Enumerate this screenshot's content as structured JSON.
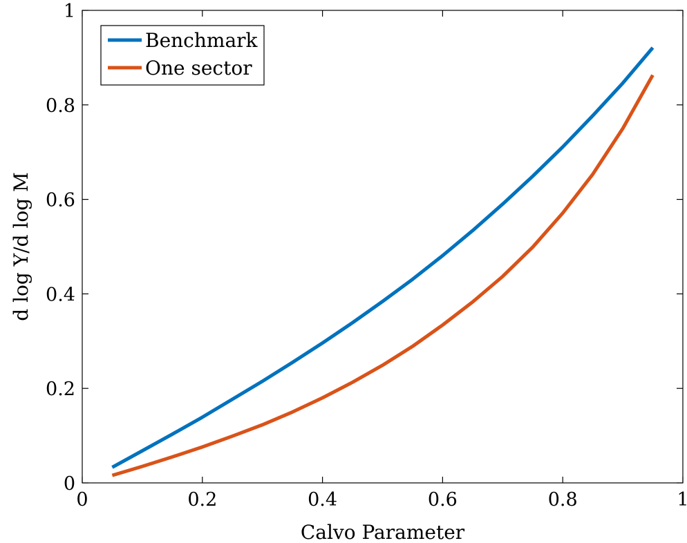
{
  "chart_data": {
    "type": "line",
    "title": "",
    "xlabel": "Calvo Parameter",
    "ylabel": "d log Y/d log M",
    "xlim": [
      0,
      1
    ],
    "ylim": [
      0,
      1
    ],
    "xticks": [
      "0",
      "0.2",
      "0.4",
      "0.6",
      "0.8",
      "1"
    ],
    "yticks": [
      "0",
      "0.2",
      "0.4",
      "0.6",
      "0.8",
      "1"
    ],
    "grid": false,
    "legend_position": "top-left",
    "x": [
      0.05,
      0.1,
      0.15,
      0.2,
      0.25,
      0.3,
      0.35,
      0.4,
      0.45,
      0.5,
      0.55,
      0.6,
      0.65,
      0.7,
      0.75,
      0.8,
      0.85,
      0.9,
      0.95
    ],
    "series": [
      {
        "name": "Benchmark",
        "color": "#0072BD",
        "values": [
          0.033,
          0.068,
          0.103,
          0.139,
          0.177,
          0.215,
          0.255,
          0.296,
          0.339,
          0.384,
          0.431,
          0.481,
          0.534,
          0.59,
          0.649,
          0.711,
          0.777,
          0.846,
          0.921
        ]
      },
      {
        "name": "One sector",
        "color": "#D95319",
        "values": [
          0.016,
          0.035,
          0.055,
          0.076,
          0.099,
          0.123,
          0.15,
          0.18,
          0.213,
          0.249,
          0.289,
          0.334,
          0.383,
          0.437,
          0.499,
          0.571,
          0.653,
          0.75,
          0.863
        ]
      }
    ]
  }
}
